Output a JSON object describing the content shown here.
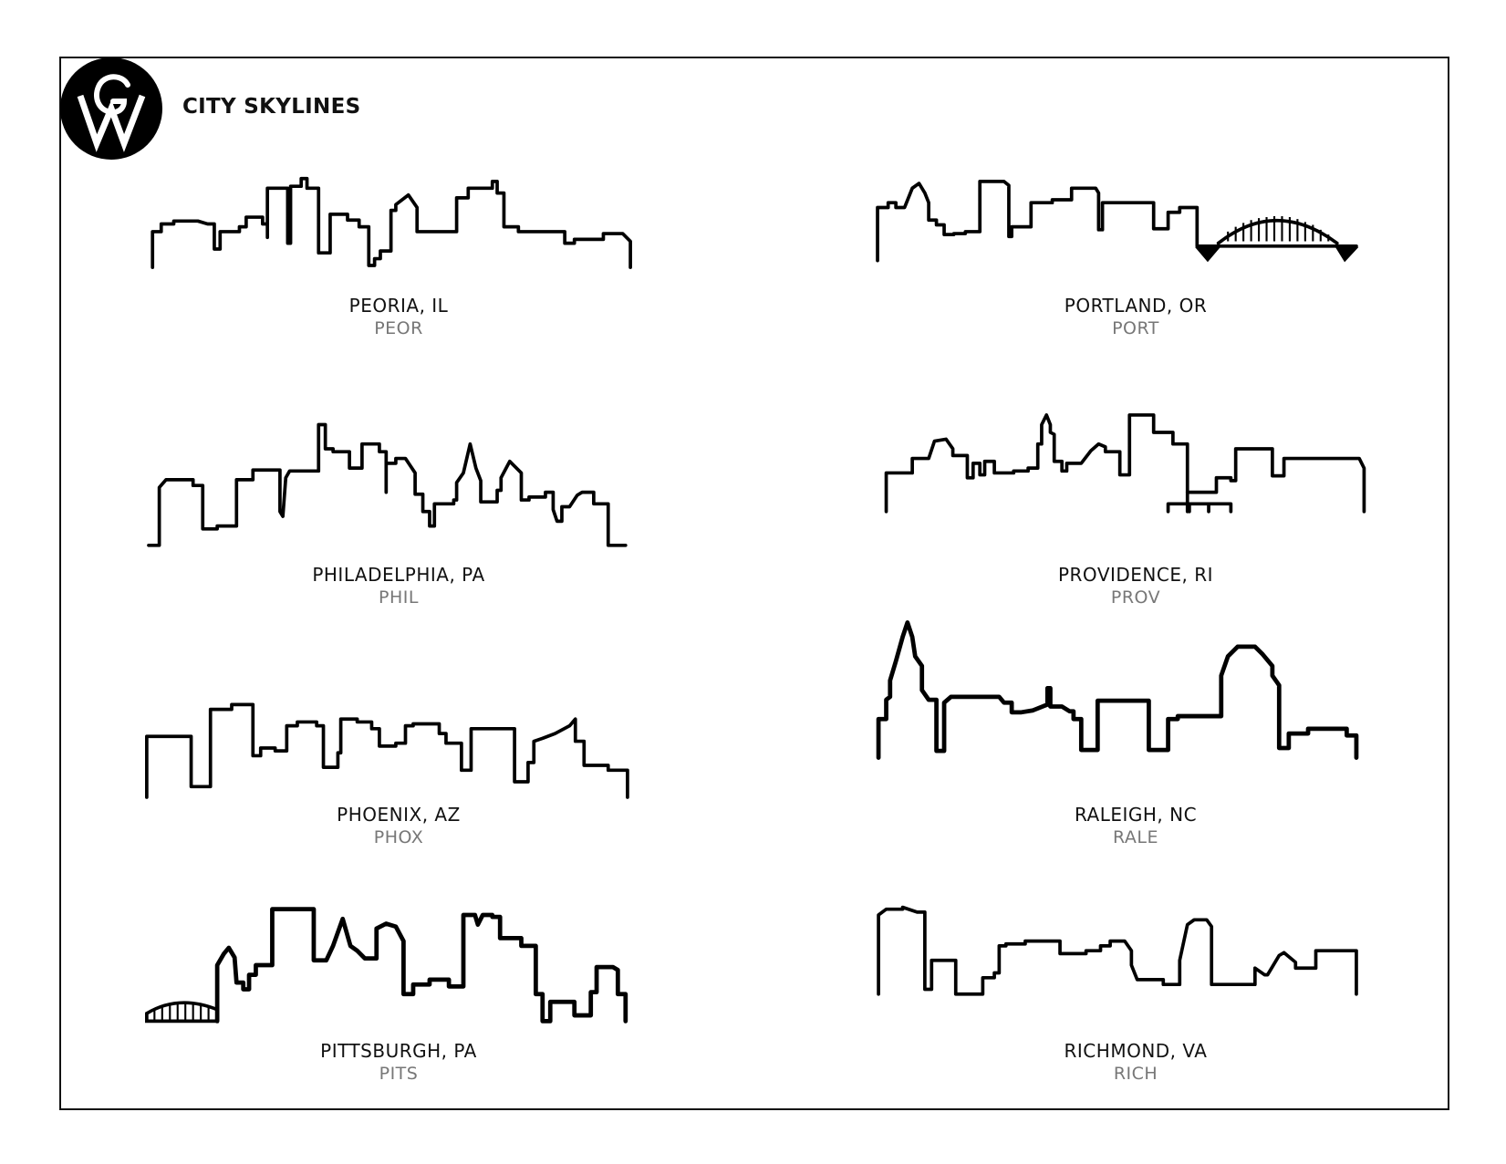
{
  "logo": {
    "letters": "GW",
    "icon": "gw-monogram-logo"
  },
  "header": {
    "title": "CITY SKYLINES"
  },
  "cities": [
    {
      "name": "PEORIA, IL",
      "code": "PEOR"
    },
    {
      "name": "PORTLAND, OR",
      "code": "PORT"
    },
    {
      "name": "PHILADELPHIA, PA",
      "code": "PHIL"
    },
    {
      "name": "PROVIDENCE, RI",
      "code": "PROV"
    },
    {
      "name": "PHOENIX, AZ",
      "code": "PHOX"
    },
    {
      "name": "RALEIGH, NC",
      "code": "RALE"
    },
    {
      "name": "PITTSBURGH, PA",
      "code": "PITS"
    },
    {
      "name": "RICHMOND, VA",
      "code": "RICH"
    }
  ],
  "colors": {
    "ink": "#111111",
    "code_gray": "#777777"
  }
}
